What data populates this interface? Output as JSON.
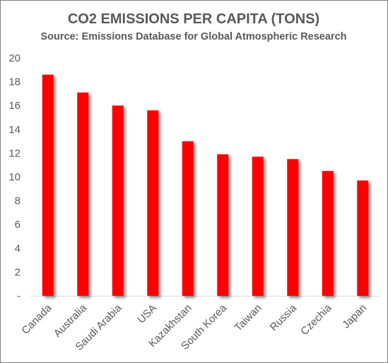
{
  "chart_data": {
    "type": "bar",
    "title": "CO2 EMISSIONS PER CAPITA (TONS)",
    "subtitle": "Source: Emissions Database for Global Atmospheric Research",
    "xlabel": "",
    "ylabel": "",
    "categories": [
      "Canada",
      "Australia",
      "Saudi Arabia",
      "USA",
      "Kazakhstan",
      "South Korea",
      "Taiwan",
      "Russia",
      "Czechia",
      "Japan"
    ],
    "values": [
      18.6,
      17.1,
      16.0,
      15.6,
      13.0,
      11.9,
      11.7,
      11.5,
      10.5,
      9.7
    ],
    "ylim": [
      0,
      20
    ],
    "y_ticks": [
      0,
      2,
      4,
      6,
      8,
      10,
      12,
      14,
      16,
      18,
      20
    ],
    "y_tick_labels": [
      "-",
      "2",
      "4",
      "6",
      "8",
      "10",
      "12",
      "14",
      "16",
      "18",
      "20"
    ],
    "grid": false,
    "legend": "none",
    "colors": {
      "bar": "#ff0000",
      "bar_shadow": "#a6a6a6",
      "text": "#595959",
      "axis": "#d9d9d9"
    }
  }
}
